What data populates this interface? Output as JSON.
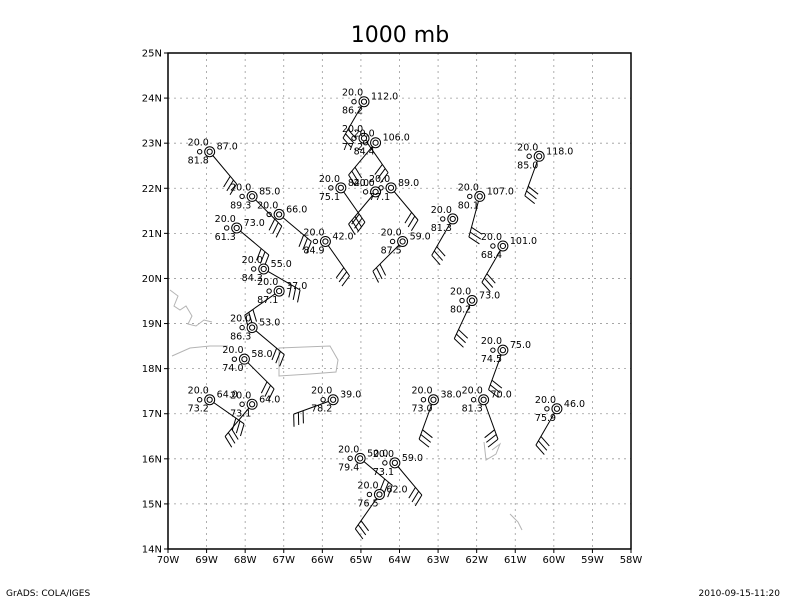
{
  "title": "1000 mb",
  "footer_left": "GrADS: COLA/IGES",
  "footer_right": "2010-09-15-11:20",
  "colors": {
    "frame": "#000000",
    "grid": "#9a9a9a",
    "coast": "#b4b4b4",
    "station": "#000000"
  },
  "map": {
    "lon_range": [
      -70,
      -58
    ],
    "lat_range": [
      14,
      25
    ],
    "x_ticks": [
      {
        "lon": -70,
        "label": "70W"
      },
      {
        "lon": -69,
        "label": "69W"
      },
      {
        "lon": -68,
        "label": "68W"
      },
      {
        "lon": -67,
        "label": "67W"
      },
      {
        "lon": -66,
        "label": "66W"
      },
      {
        "lon": -65,
        "label": "65W"
      },
      {
        "lon": -64,
        "label": "64W"
      },
      {
        "lon": -63,
        "label": "63W"
      },
      {
        "lon": -62,
        "label": "62W"
      },
      {
        "lon": -61,
        "label": "61W"
      },
      {
        "lon": -60,
        "label": "60W"
      },
      {
        "lon": -59,
        "label": "59W"
      },
      {
        "lon": -58,
        "label": "58W"
      }
    ],
    "y_ticks": [
      {
        "lat": 14,
        "label": "14N"
      },
      {
        "lat": 15,
        "label": "15N"
      },
      {
        "lat": 16,
        "label": "16N"
      },
      {
        "lat": 17,
        "label": "17N"
      },
      {
        "lat": 18,
        "label": "18N"
      },
      {
        "lat": 19,
        "label": "19N"
      },
      {
        "lat": 20,
        "label": "20N"
      },
      {
        "lat": 21,
        "label": "21N"
      },
      {
        "lat": 22,
        "label": "22N"
      },
      {
        "lat": 23,
        "label": "23N"
      },
      {
        "lat": 24,
        "label": "24N"
      },
      {
        "lat": 25,
        "label": "25N"
      }
    ]
  },
  "stations": [
    {
      "lon": -68.92,
      "lat": 22.81,
      "temp": "20.0",
      "dew": "81.8",
      "hgt": "87.0"
    },
    {
      "lon": -64.92,
      "lat": 23.92,
      "temp": "20.0",
      "dew": "86.2",
      "hgt": "112.0"
    },
    {
      "lon": -64.92,
      "lat": 23.11,
      "temp": "20.0",
      "dew": "77.2",
      "hgt": ""
    },
    {
      "lon": -64.62,
      "lat": 23.01,
      "temp": "20.0",
      "dew": "84.4",
      "hgt": "106.0"
    },
    {
      "lon": -60.38,
      "lat": 22.71,
      "temp": "20.0",
      "dew": "85.0",
      "hgt": "118.0"
    },
    {
      "lon": -67.82,
      "lat": 21.82,
      "temp": "20.0",
      "dew": "89.3",
      "hgt": "85.0"
    },
    {
      "lon": -67.12,
      "lat": 21.42,
      "temp": "20.0",
      "dew": "",
      "hgt": "66.0"
    },
    {
      "lon": -65.52,
      "lat": 22.01,
      "temp": "20.0",
      "dew": "75.1",
      "hgt": "84.0"
    },
    {
      "lon": -64.62,
      "lat": 21.92,
      "temp": "20.0",
      "dew": "",
      "hgt": ""
    },
    {
      "lon": -64.22,
      "lat": 22.01,
      "temp": "20.0",
      "dew": "77.1",
      "hgt": "89.0"
    },
    {
      "lon": -61.92,
      "lat": 21.82,
      "temp": "20.0",
      "dew": "80.1",
      "hgt": "107.0"
    },
    {
      "lon": -68.22,
      "lat": 21.12,
      "temp": "20.0",
      "dew": "61.3",
      "hgt": "73.0"
    },
    {
      "lon": -65.92,
      "lat": 20.82,
      "temp": "20.0",
      "dew": "84.9",
      "hgt": "42.0"
    },
    {
      "lon": -62.62,
      "lat": 21.32,
      "temp": "20.0",
      "dew": "81.3",
      "hgt": ""
    },
    {
      "lon": -63.92,
      "lat": 20.82,
      "temp": "20.0",
      "dew": "87.5",
      "hgt": "59.0"
    },
    {
      "lon": -61.32,
      "lat": 20.72,
      "temp": "20.0",
      "dew": "68.4",
      "hgt": "101.0"
    },
    {
      "lon": -67.52,
      "lat": 20.21,
      "temp": "20.0",
      "dew": "84.3",
      "hgt": "55.0"
    },
    {
      "lon": -67.12,
      "lat": 19.72,
      "temp": "20.0",
      "dew": "87.1",
      "hgt": "37.0"
    },
    {
      "lon": -62.12,
      "lat": 19.51,
      "temp": "20.0",
      "dew": "80.2",
      "hgt": "73.0"
    },
    {
      "lon": -67.82,
      "lat": 18.91,
      "temp": "20.0",
      "dew": "86.3",
      "hgt": "53.0"
    },
    {
      "lon": -68.02,
      "lat": 18.21,
      "temp": "20.0",
      "dew": "74.0",
      "hgt": "58.0"
    },
    {
      "lon": -61.32,
      "lat": 18.41,
      "temp": "20.0",
      "dew": "74.5",
      "hgt": "75.0"
    },
    {
      "lon": -68.92,
      "lat": 17.31,
      "temp": "20.0",
      "dew": "73.2",
      "hgt": "64.0"
    },
    {
      "lon": -67.82,
      "lat": 17.21,
      "temp": "20.0",
      "dew": "73.1",
      "hgt": "64.0"
    },
    {
      "lon": -65.72,
      "lat": 17.31,
      "temp": "20.0",
      "dew": "78.2",
      "hgt": "39.0"
    },
    {
      "lon": -63.12,
      "lat": 17.31,
      "temp": "20.0",
      "dew": "73.0",
      "hgt": "38.0"
    },
    {
      "lon": -61.82,
      "lat": 17.31,
      "temp": "20.0",
      "dew": "81.3",
      "hgt": "70.0"
    },
    {
      "lon": -59.92,
      "lat": 17.11,
      "temp": "20.0",
      "dew": "75.9",
      "hgt": "46.0"
    },
    {
      "lon": -65.02,
      "lat": 16.01,
      "temp": "20.0",
      "dew": "79.4",
      "hgt": "50.0"
    },
    {
      "lon": -64.12,
      "lat": 15.91,
      "temp": "20.0",
      "dew": "73.1",
      "hgt": "59.0"
    },
    {
      "lon": -64.52,
      "lat": 15.21,
      "temp": "20.0",
      "dew": "76.5",
      "hgt": "62.0"
    }
  ]
}
